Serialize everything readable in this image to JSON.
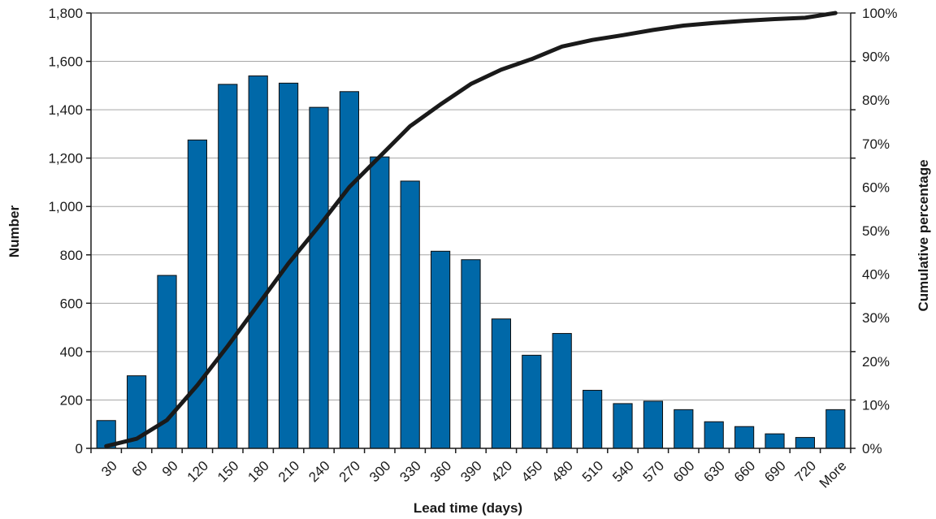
{
  "chart_data": {
    "type": "bar",
    "xlabel": "Lead time (days)",
    "ylabel": "Number",
    "y2label": "Cumulative percentage",
    "categories": [
      "30",
      "60",
      "90",
      "120",
      "150",
      "180",
      "210",
      "240",
      "270",
      "300",
      "330",
      "360",
      "390",
      "420",
      "450",
      "480",
      "510",
      "540",
      "570",
      "600",
      "630",
      "660",
      "690",
      "720",
      "More"
    ],
    "ylim": [
      0,
      1800
    ],
    "y2lim": [
      0,
      100
    ],
    "yticks": [
      "0",
      "200",
      "400",
      "600",
      "800",
      "1,000",
      "1,200",
      "1,400",
      "1,600",
      "1,800"
    ],
    "y2ticks": [
      "0%",
      "10%",
      "20%",
      "30%",
      "40%",
      "50%",
      "60%",
      "70%",
      "80%",
      "90%",
      "100%"
    ],
    "grid": true,
    "series": [
      {
        "type": "bar",
        "axis": "left",
        "values": [
          115,
          300,
          715,
          1275,
          1505,
          1540,
          1510,
          1410,
          1475,
          1205,
          1105,
          815,
          780,
          535,
          385,
          475,
          240,
          185,
          195,
          160,
          110,
          90,
          60,
          45,
          160
        ]
      },
      {
        "type": "line",
        "axis": "right",
        "values": [
          0.5,
          2.2,
          6.5,
          14.5,
          23.5,
          33,
          42.5,
          51,
          60,
          67,
          74,
          79,
          83.7,
          87,
          89.4,
          92.3,
          93.8,
          94.9,
          96.1,
          97.1,
          97.7,
          98.2,
          98.6,
          98.9,
          100
        ]
      }
    ],
    "colors": {
      "bar": "#0068a8",
      "bar_outline": "#0d0d0d",
      "line": "#1a1a1a",
      "grid": "#a6a6a6",
      "axis": "#1a1a1a"
    }
  }
}
